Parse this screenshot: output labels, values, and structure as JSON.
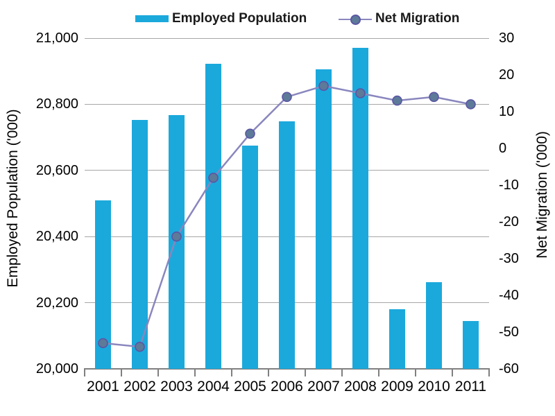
{
  "chart_data": {
    "type": "combo-bar-line",
    "title": "",
    "categories": [
      "2001",
      "2002",
      "2003",
      "2004",
      "2005",
      "2006",
      "2007",
      "2008",
      "2009",
      "2010",
      "2011"
    ],
    "series": [
      {
        "name": "Employed Population",
        "type": "bar",
        "axis": "left",
        "color": "#1ba9dc",
        "values": [
          20510,
          20752,
          20768,
          20922,
          20676,
          20749,
          20905,
          20970,
          20180,
          20262,
          20145
        ]
      },
      {
        "name": "Net Migration",
        "type": "line",
        "axis": "right",
        "line_color": "#8986be",
        "marker_fill": "#5d7a99",
        "marker_edge": "#5b55a4",
        "values": [
          -53,
          -54,
          -24,
          -8,
          4,
          14,
          17,
          15,
          13,
          14,
          12
        ]
      }
    ],
    "left_axis": {
      "title": "Employed Population ('000)",
      "min": 20000,
      "max": 21000,
      "step": 200,
      "tick_labels": [
        "21,000",
        "20,800",
        "20,600",
        "20,400",
        "20,200",
        "20,000"
      ]
    },
    "right_axis": {
      "title": "Net Migration ('000)",
      "min": -60,
      "max": 30,
      "step": 10,
      "tick_labels": [
        "30",
        "20",
        "10",
        "0",
        "-10",
        "-20",
        "-30",
        "-40",
        "-50",
        "-60"
      ]
    },
    "grid": true,
    "legend_position": "top",
    "colors": {
      "gridline": "#a6a6a6",
      "axis_line": "#7f7f7f",
      "text": "#000000"
    }
  }
}
